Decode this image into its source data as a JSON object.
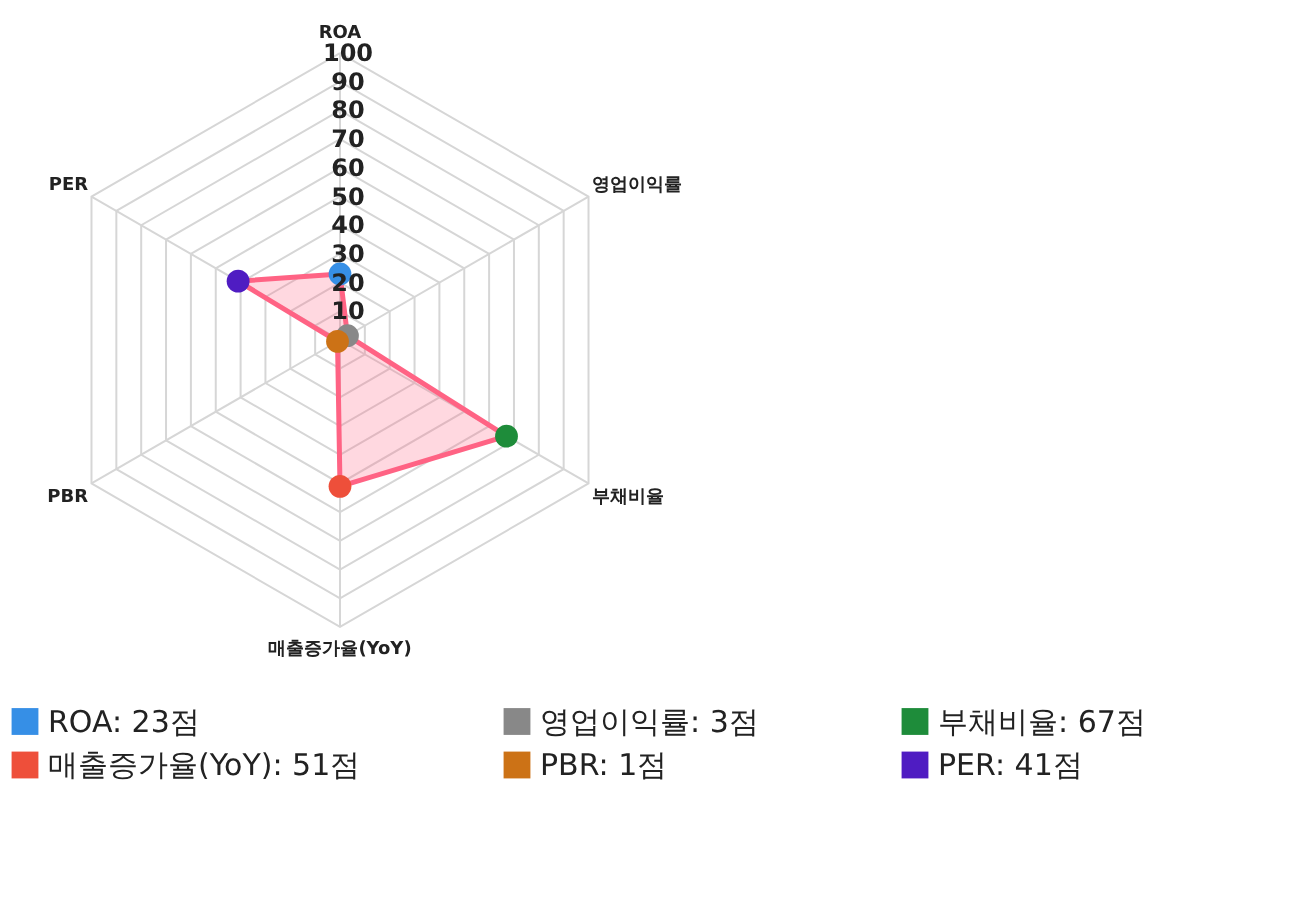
{
  "chart_data": {
    "type": "radar",
    "categories": [
      "ROA",
      "영업이익률",
      "부채비율",
      "매출증가율(YoY)",
      "PBR",
      "PER"
    ],
    "ylim": [
      0,
      100
    ],
    "yticks": [
      10,
      20,
      30,
      40,
      50,
      60,
      70,
      80,
      90,
      100
    ],
    "grid": true,
    "marker": "circle",
    "line_style": "solid",
    "series": [
      {
        "color": "#ff6384",
        "values": [
          23,
          3,
          67,
          51,
          1,
          41
        ],
        "colors": [
          "#368fe6",
          "#888888",
          "#1e8c3a",
          "#ee4f3a",
          "#cc7216",
          "#4f1cc2"
        ]
      }
    ],
    "annotations": [
      "ROA: 23점",
      "영업이익률: 3점",
      "부채비율: 67점",
      "매출증가율(YoY): 51점",
      "PBR: 1점",
      "PER: 41점"
    ]
  }
}
